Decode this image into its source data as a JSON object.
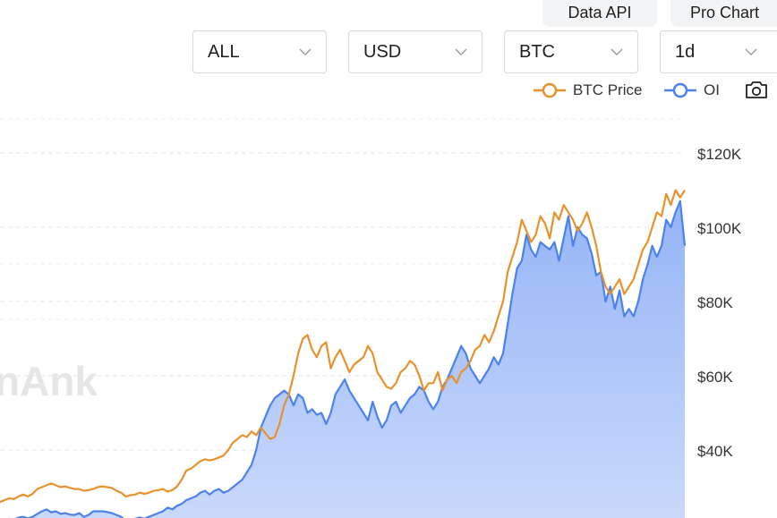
{
  "top_buttons": {
    "data_api": "Data API",
    "pro_chart": "Pro Chart"
  },
  "filters": {
    "exchange": "ALL",
    "currency": "USD",
    "symbol": "BTC",
    "interval": "1d"
  },
  "legend": {
    "price": "BTC Price",
    "oi": "OI",
    "price_color": "#e8922e",
    "oi_color": "#4c82f0"
  },
  "camera_icon": "camera-icon",
  "watermark": "nAnk",
  "chart_data": {
    "type": "line",
    "y_axis_ticks": [
      "$120K",
      "$100K",
      "$80K",
      "$60K",
      "$40K"
    ],
    "y_axis_side": "right",
    "grid": true,
    "series": [
      {
        "name": "BTC Price",
        "style": "line",
        "values": [
          26000,
          26500,
          27000,
          26800,
          27500,
          28000,
          27500,
          28200,
          29500,
          30000,
          30500,
          31000,
          30500,
          30000,
          30200,
          29800,
          29500,
          29500,
          29000,
          29200,
          29500,
          30000,
          30200,
          30000,
          29800,
          29000,
          28500,
          27500,
          27800,
          28000,
          28500,
          28200,
          28500,
          29000,
          29200,
          29500,
          28800,
          29200,
          30200,
          32000,
          34500,
          35000,
          36000,
          37000,
          37500,
          37200,
          37500,
          38000,
          38500,
          40000,
          42000,
          43000,
          44000,
          43500,
          45000,
          44000,
          46000,
          44500,
          43000,
          43500,
          47000,
          52000,
          55000,
          60000,
          66000,
          70000,
          71000,
          67000,
          65000,
          68000,
          69000,
          62000,
          65000,
          67000,
          64000,
          61000,
          63000,
          64000,
          65000,
          68000,
          66000,
          61000,
          59000,
          57000,
          56500,
          58000,
          61000,
          62000,
          64000,
          63000,
          60000,
          56000,
          58000,
          58000,
          61000,
          56000,
          59000,
          60000,
          58000,
          61000,
          62000,
          64000,
          67000,
          68000,
          71000,
          69000,
          72000,
          76000,
          80000,
          88000,
          92000,
          96000,
          102000,
          99000,
          96000,
          98000,
          103000,
          101000,
          97000,
          104000,
          102000,
          106000,
          104000,
          102000,
          99000,
          101000,
          104000,
          100000,
          95000,
          88000,
          84000,
          82000,
          84000,
          86000,
          82000,
          84000,
          86000,
          90000,
          94000,
          96000,
          100000,
          104000,
          103000,
          109000,
          106000,
          110000,
          108000,
          110000
        ]
      },
      {
        "name": "OI",
        "style": "area",
        "values": [
          21000,
          21200,
          21500,
          21300,
          21800,
          22000,
          21600,
          22000,
          22800,
          23500,
          24000,
          23200,
          23500,
          22800,
          23000,
          22600,
          22500,
          23000,
          22000,
          22500,
          23500,
          23500,
          23500,
          23300,
          23000,
          22500,
          22000,
          21000,
          21300,
          21500,
          21800,
          21500,
          22000,
          22500,
          23000,
          23500,
          24500,
          24000,
          25000,
          25500,
          26500,
          27000,
          27500,
          28500,
          29000,
          28000,
          29000,
          29500,
          28500,
          29000,
          30000,
          31000,
          32000,
          34000,
          36000,
          40000,
          46000,
          49000,
          52000,
          54000,
          55000,
          56000,
          55000,
          52000,
          55000,
          54000,
          50000,
          51000,
          49500,
          50000,
          47000,
          50000,
          55000,
          57000,
          59000,
          56000,
          54000,
          52000,
          50000,
          48000,
          53000,
          49000,
          46000,
          48000,
          52000,
          53000,
          50000,
          52000,
          54000,
          55000,
          57000,
          56000,
          53000,
          51000,
          53000,
          57000,
          59000,
          62000,
          65000,
          68000,
          66000,
          62000,
          60000,
          58000,
          60000,
          62000,
          65000,
          63000,
          66000,
          74000,
          82000,
          89000,
          91000,
          98000,
          94000,
          92000,
          96000,
          95000,
          94000,
          96000,
          91000,
          97000,
          103000,
          95000,
          100000,
          98000,
          97000,
          93000,
          87000,
          88000,
          80000,
          84000,
          78000,
          83000,
          76000,
          78000,
          76000,
          80000,
          86000,
          90000,
          95000,
          92000,
          95000,
          102000,
          100000,
          104000,
          107000,
          95000
        ]
      }
    ]
  }
}
